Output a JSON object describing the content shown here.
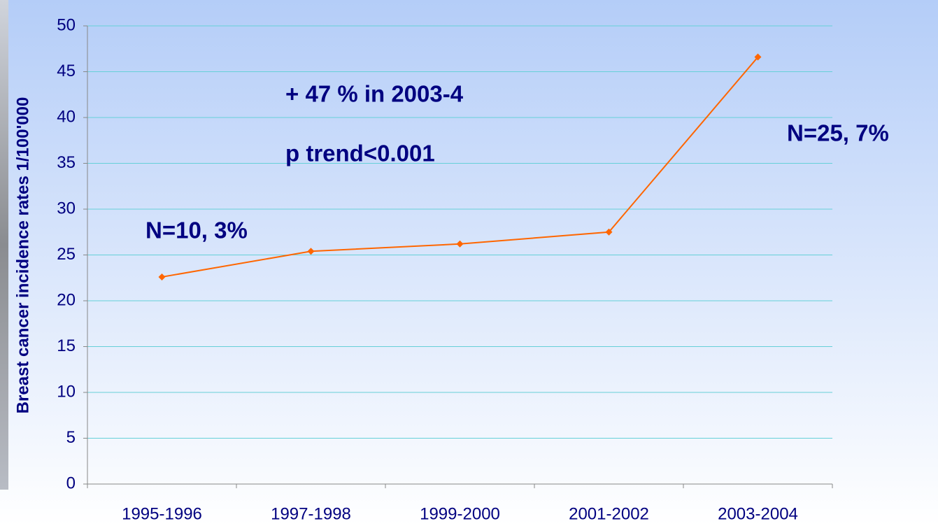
{
  "chart_data": {
    "type": "line",
    "y_label": "Breast cancer incidence rates 1/100'000",
    "categories": [
      "1995-1996",
      "1997-1998",
      "1999-2000",
      "2001-2002",
      "2003-2004"
    ],
    "series": [
      {
        "color": "#ff6600",
        "values": [
          22.6,
          25.4,
          26.2,
          27.5,
          46.6
        ]
      }
    ],
    "ylim": [
      0,
      50
    ],
    "yticks": [
      0,
      5,
      10,
      15,
      20,
      25,
      30,
      35,
      40,
      45,
      50
    ],
    "grid": true,
    "annotations": [
      "+ 47 % in 2003-4",
      "p trend<0.001",
      "N=10,  3%",
      "N=25, 7%"
    ]
  }
}
